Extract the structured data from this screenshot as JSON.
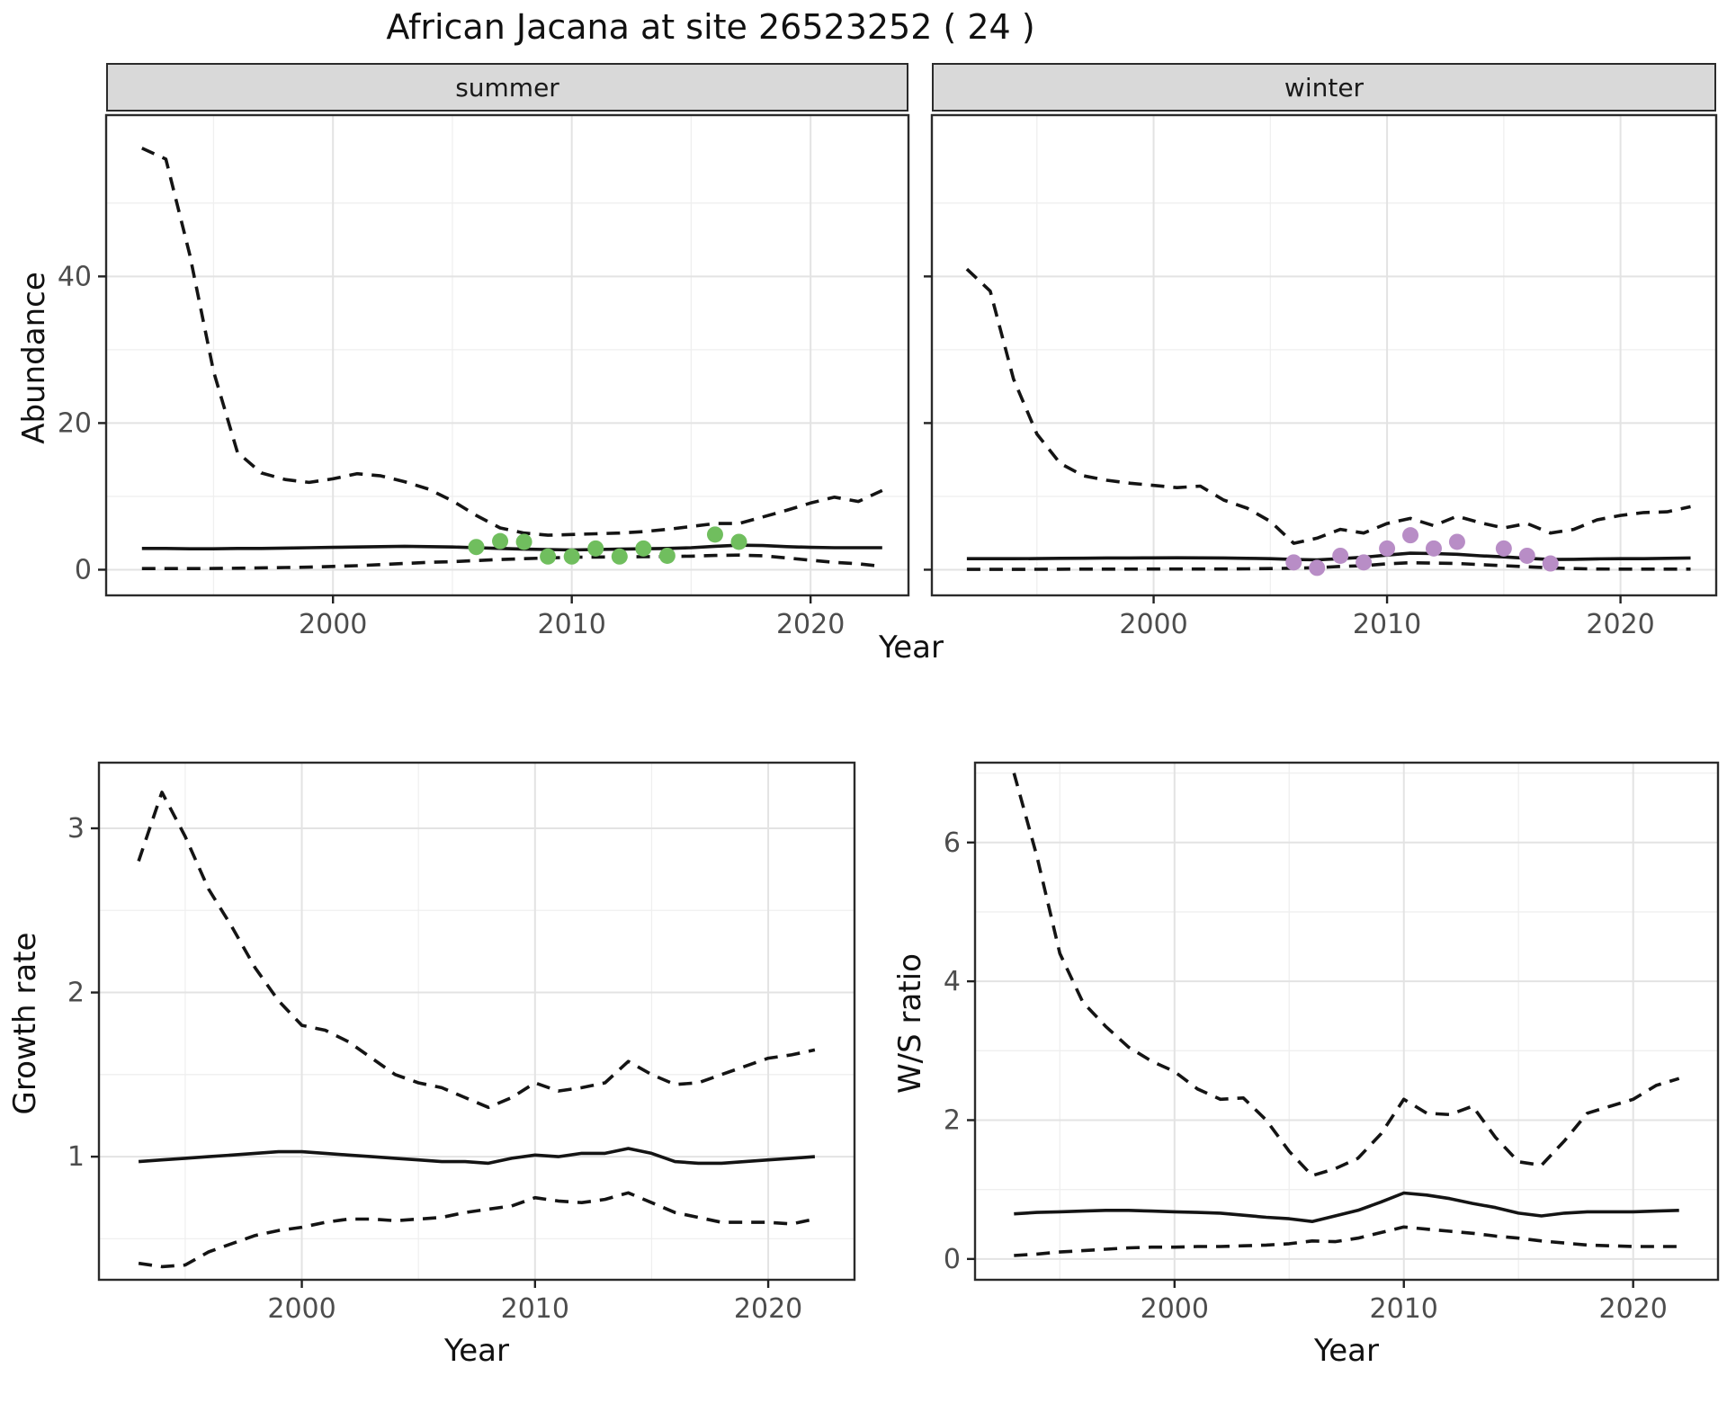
{
  "title": "African Jacana at site 26523252 ( 24 )",
  "colors": {
    "summer_point": "#70BE5E",
    "winter_point": "#B88DC6",
    "line": "#141414",
    "strip_bg": "#d9d9d9",
    "grid_major": "#e3e3e3",
    "grid_minor": "#efefef",
    "tick_text": "#4d4d4d",
    "panel_border": "#2b2b2b"
  },
  "axis_labels": {
    "abundance": "Abundance",
    "growth_rate": "Growth rate",
    "ws_ratio": "W/S ratio",
    "year": "Year"
  },
  "chart_data": [
    {
      "id": "abundance-summer",
      "type": "line",
      "facet": "summer",
      "xlabel": "Year",
      "ylabel": "Abundance",
      "xlim": [
        1990.5,
        2024.1
      ],
      "ylim": [
        -3.5,
        62
      ],
      "x_ticks": [
        2000,
        2010,
        2020
      ],
      "x_minor": [
        1995,
        2005,
        2015
      ],
      "y_ticks": [
        0,
        20,
        40
      ],
      "y_minor": [
        10,
        30,
        50
      ],
      "show_y_tick_labels": true,
      "series": [
        {
          "name": "upper_ci",
          "style": "dashed",
          "x": [
            1992,
            1993,
            1994,
            1995,
            1996,
            1997,
            1998,
            1999,
            2000,
            2001,
            2002,
            2003,
            2004,
            2005,
            2006,
            2007,
            2008,
            2009,
            2010,
            2011,
            2012,
            2013,
            2014,
            2015,
            2016,
            2017,
            2018,
            2019,
            2020,
            2021,
            2022,
            2023
          ],
          "y": [
            57.5,
            56,
            43,
            27,
            16,
            13.2,
            12.3,
            11.9,
            12.4,
            13.1,
            12.8,
            12,
            11,
            9.4,
            7.4,
            5.7,
            5.0,
            4.7,
            4.8,
            4.9,
            5.0,
            5.2,
            5.5,
            5.9,
            6.3,
            6.3,
            7.2,
            8.1,
            9.1,
            9.9,
            9.3,
            10.8
          ]
        },
        {
          "name": "fit",
          "style": "solid",
          "x": [
            1992,
            1993,
            1994,
            1995,
            1996,
            1997,
            1998,
            1999,
            2000,
            2001,
            2002,
            2003,
            2004,
            2005,
            2006,
            2007,
            2008,
            2009,
            2010,
            2011,
            2012,
            2013,
            2014,
            2015,
            2016,
            2017,
            2018,
            2019,
            2020,
            2021,
            2022,
            2023
          ],
          "y": [
            2.9,
            2.9,
            2.85,
            2.85,
            2.9,
            2.9,
            2.95,
            3.0,
            3.05,
            3.1,
            3.15,
            3.2,
            3.15,
            3.1,
            3.0,
            2.9,
            2.8,
            2.75,
            2.7,
            2.75,
            2.8,
            2.85,
            2.9,
            3.0,
            3.2,
            3.35,
            3.3,
            3.15,
            3.05,
            3.0,
            3.0,
            3.0
          ]
        },
        {
          "name": "lower_ci",
          "style": "dashed",
          "x": [
            1992,
            1993,
            1994,
            1995,
            1996,
            1997,
            1998,
            1999,
            2000,
            2001,
            2002,
            2003,
            2004,
            2005,
            2006,
            2007,
            2008,
            2009,
            2010,
            2011,
            2012,
            2013,
            2014,
            2015,
            2016,
            2017,
            2018,
            2019,
            2020,
            2021,
            2022,
            2023
          ],
          "y": [
            0.15,
            0.15,
            0.15,
            0.17,
            0.2,
            0.25,
            0.3,
            0.35,
            0.45,
            0.55,
            0.7,
            0.85,
            1.0,
            1.1,
            1.25,
            1.4,
            1.5,
            1.6,
            1.7,
            1.72,
            1.75,
            1.78,
            1.8,
            1.85,
            1.95,
            2.0,
            1.9,
            1.6,
            1.3,
            1.0,
            0.8,
            0.45
          ]
        }
      ],
      "points": {
        "name": "summer_counts",
        "color": "#70BE5E",
        "x": [
          2006,
          2007,
          2008,
          2009,
          2010,
          2011,
          2012,
          2013,
          2014,
          2016,
          2017
        ],
        "y": [
          3.1,
          3.9,
          3.8,
          1.8,
          1.8,
          2.9,
          1.8,
          2.9,
          1.9,
          4.8,
          3.8
        ]
      }
    },
    {
      "id": "abundance-winter",
      "type": "line",
      "facet": "winter",
      "xlabel": "Year",
      "ylabel": "Abundance",
      "xlim": [
        1990.5,
        2024.1
      ],
      "ylim": [
        -3.5,
        62
      ],
      "x_ticks": [
        2000,
        2010,
        2020
      ],
      "x_minor": [
        1995,
        2005,
        2015
      ],
      "y_ticks": [
        0,
        20,
        40
      ],
      "y_minor": [
        10,
        30,
        50
      ],
      "show_y_tick_labels": false,
      "series": [
        {
          "name": "upper_ci",
          "style": "dashed",
          "x": [
            1992,
            1993,
            1994,
            1995,
            1996,
            1997,
            1998,
            1999,
            2000,
            2001,
            2002,
            2003,
            2004,
            2005,
            2006,
            2007,
            2008,
            2009,
            2010,
            2011,
            2012,
            2013,
            2014,
            2015,
            2016,
            2017,
            2018,
            2019,
            2020,
            2021,
            2022,
            2023
          ],
          "y": [
            41,
            38,
            26,
            18.5,
            14.5,
            12.8,
            12.2,
            11.8,
            11.5,
            11.2,
            11.4,
            9.5,
            8.4,
            6.6,
            3.6,
            4.3,
            5.5,
            5.0,
            6.3,
            7.0,
            6.0,
            7.3,
            6.4,
            5.7,
            6.3,
            5.0,
            5.5,
            6.8,
            7.4,
            7.8,
            7.9,
            8.6
          ]
        },
        {
          "name": "fit",
          "style": "solid",
          "x": [
            1992,
            1993,
            1994,
            1995,
            1996,
            1997,
            1998,
            1999,
            2000,
            2001,
            2002,
            2003,
            2004,
            2005,
            2006,
            2007,
            2008,
            2009,
            2010,
            2011,
            2012,
            2013,
            2014,
            2015,
            2016,
            2017,
            2018,
            2019,
            2020,
            2021,
            2022,
            2023
          ],
          "y": [
            1.5,
            1.5,
            1.5,
            1.52,
            1.55,
            1.57,
            1.6,
            1.6,
            1.62,
            1.63,
            1.62,
            1.6,
            1.55,
            1.5,
            1.4,
            1.35,
            1.5,
            1.7,
            2.0,
            2.25,
            2.2,
            2.1,
            1.9,
            1.75,
            1.55,
            1.4,
            1.42,
            1.48,
            1.5,
            1.5,
            1.55,
            1.6
          ]
        },
        {
          "name": "lower_ci",
          "style": "dashed",
          "x": [
            1992,
            1993,
            1994,
            1995,
            1996,
            1997,
            1998,
            1999,
            2000,
            2001,
            2002,
            2003,
            2004,
            2005,
            2006,
            2007,
            2008,
            2009,
            2010,
            2011,
            2012,
            2013,
            2014,
            2015,
            2016,
            2017,
            2018,
            2019,
            2020,
            2021,
            2022,
            2023
          ],
          "y": [
            0.05,
            0.05,
            0.05,
            0.06,
            0.07,
            0.08,
            0.08,
            0.08,
            0.09,
            0.1,
            0.1,
            0.1,
            0.12,
            0.15,
            0.2,
            0.28,
            0.45,
            0.55,
            0.8,
            0.95,
            0.9,
            0.85,
            0.7,
            0.55,
            0.4,
            0.25,
            0.15,
            0.1,
            0.08,
            0.08,
            0.08,
            0.08
          ]
        }
      ],
      "points": {
        "name": "winter_counts",
        "color": "#B88DC6",
        "x": [
          2006,
          2007,
          2008,
          2009,
          2010,
          2011,
          2012,
          2013,
          2015,
          2016,
          2017
        ],
        "y": [
          1.0,
          0.25,
          1.9,
          1.0,
          2.9,
          4.7,
          2.9,
          3.8,
          2.9,
          1.9,
          0.85
        ]
      }
    },
    {
      "id": "growth-rate",
      "type": "line",
      "facet": null,
      "xlabel": "Year",
      "ylabel": "Growth rate",
      "xlim": [
        1991.3,
        2023.7
      ],
      "ylim": [
        0.25,
        3.4
      ],
      "x_ticks": [
        2000,
        2010,
        2020
      ],
      "x_minor": [
        1995,
        2005,
        2015
      ],
      "y_ticks": [
        1,
        2,
        3
      ],
      "y_minor": [
        0.5,
        1.5,
        2.5
      ],
      "show_y_tick_labels": true,
      "series": [
        {
          "name": "upper_ci",
          "style": "dashed",
          "x": [
            1993,
            1994,
            1995,
            1996,
            1997,
            1998,
            1999,
            2000,
            2001,
            2002,
            2003,
            2004,
            2005,
            2006,
            2007,
            2008,
            2009,
            2010,
            2011,
            2012,
            2013,
            2014,
            2015,
            2016,
            2017,
            2018,
            2019,
            2020,
            2021,
            2022
          ],
          "y": [
            2.8,
            3.22,
            2.95,
            2.63,
            2.4,
            2.15,
            1.95,
            1.8,
            1.77,
            1.7,
            1.6,
            1.5,
            1.45,
            1.42,
            1.36,
            1.3,
            1.36,
            1.45,
            1.4,
            1.42,
            1.45,
            1.58,
            1.5,
            1.44,
            1.45,
            1.5,
            1.55,
            1.6,
            1.62,
            1.65
          ]
        },
        {
          "name": "fit",
          "style": "solid",
          "x": [
            1993,
            1994,
            1995,
            1996,
            1997,
            1998,
            1999,
            2000,
            2001,
            2002,
            2003,
            2004,
            2005,
            2006,
            2007,
            2008,
            2009,
            2010,
            2011,
            2012,
            2013,
            2014,
            2015,
            2016,
            2017,
            2018,
            2019,
            2020,
            2021,
            2022
          ],
          "y": [
            0.97,
            0.98,
            0.99,
            1.0,
            1.01,
            1.02,
            1.03,
            1.03,
            1.02,
            1.01,
            1.0,
            0.99,
            0.98,
            0.97,
            0.97,
            0.96,
            0.99,
            1.01,
            1.0,
            1.02,
            1.02,
            1.05,
            1.02,
            0.97,
            0.96,
            0.96,
            0.97,
            0.98,
            0.99,
            1.0
          ]
        },
        {
          "name": "lower_ci",
          "style": "dashed",
          "x": [
            1993,
            1994,
            1995,
            1996,
            1997,
            1998,
            1999,
            2000,
            2001,
            2002,
            2003,
            2004,
            2005,
            2006,
            2007,
            2008,
            2009,
            2010,
            2011,
            2012,
            2013,
            2014,
            2015,
            2016,
            2017,
            2018,
            2019,
            2020,
            2021,
            2022
          ],
          "y": [
            0.35,
            0.33,
            0.34,
            0.42,
            0.47,
            0.52,
            0.55,
            0.57,
            0.6,
            0.62,
            0.62,
            0.61,
            0.62,
            0.63,
            0.66,
            0.68,
            0.7,
            0.75,
            0.73,
            0.72,
            0.74,
            0.78,
            0.72,
            0.66,
            0.63,
            0.6,
            0.6,
            0.6,
            0.59,
            0.62
          ]
        }
      ],
      "points": null
    },
    {
      "id": "ws-ratio",
      "type": "line",
      "facet": null,
      "xlabel": "Year",
      "ylabel": "W/S ratio",
      "xlim": [
        1991.3,
        2023.7
      ],
      "ylim": [
        -0.3,
        7.15
      ],
      "x_ticks": [
        2000,
        2010,
        2020
      ],
      "x_minor": [
        1995,
        2005,
        2015
      ],
      "y_ticks": [
        0,
        2,
        4,
        6
      ],
      "y_minor": [
        1,
        3,
        5,
        7
      ],
      "show_y_tick_labels": true,
      "series": [
        {
          "name": "upper_ci",
          "style": "dashed",
          "x": [
            1993,
            1994,
            1995,
            1996,
            1997,
            1998,
            1999,
            2000,
            2001,
            2002,
            2003,
            2004,
            2005,
            2006,
            2007,
            2008,
            2009,
            2010,
            2011,
            2012,
            2013,
            2014,
            2015,
            2016,
            2017,
            2018,
            2019,
            2020,
            2021,
            2022
          ],
          "y": [
            7.0,
            5.8,
            4.4,
            3.7,
            3.35,
            3.05,
            2.85,
            2.7,
            2.45,
            2.3,
            2.32,
            2.0,
            1.55,
            1.2,
            1.3,
            1.45,
            1.8,
            2.3,
            2.1,
            2.08,
            2.2,
            1.75,
            1.4,
            1.35,
            1.7,
            2.1,
            2.2,
            2.3,
            2.5,
            2.6
          ]
        },
        {
          "name": "fit",
          "style": "solid",
          "x": [
            1993,
            1994,
            1995,
            1996,
            1997,
            1998,
            1999,
            2000,
            2001,
            2002,
            2003,
            2004,
            2005,
            2006,
            2007,
            2008,
            2009,
            2010,
            2011,
            2012,
            2013,
            2014,
            2015,
            2016,
            2017,
            2018,
            2019,
            2020,
            2021,
            2022
          ],
          "y": [
            0.65,
            0.67,
            0.68,
            0.69,
            0.7,
            0.7,
            0.69,
            0.68,
            0.67,
            0.66,
            0.63,
            0.6,
            0.58,
            0.54,
            0.62,
            0.7,
            0.82,
            0.95,
            0.92,
            0.87,
            0.8,
            0.74,
            0.66,
            0.62,
            0.66,
            0.68,
            0.68,
            0.68,
            0.69,
            0.7
          ]
        },
        {
          "name": "lower_ci",
          "style": "dashed",
          "x": [
            1993,
            1994,
            1995,
            1996,
            1997,
            1998,
            1999,
            2000,
            2001,
            2002,
            2003,
            2004,
            2005,
            2006,
            2007,
            2008,
            2009,
            2010,
            2011,
            2012,
            2013,
            2014,
            2015,
            2016,
            2017,
            2018,
            2019,
            2020,
            2021,
            2022
          ],
          "y": [
            0.05,
            0.07,
            0.1,
            0.12,
            0.14,
            0.16,
            0.17,
            0.17,
            0.18,
            0.18,
            0.19,
            0.2,
            0.22,
            0.26,
            0.25,
            0.3,
            0.38,
            0.46,
            0.43,
            0.4,
            0.37,
            0.33,
            0.3,
            0.26,
            0.23,
            0.2,
            0.19,
            0.18,
            0.18,
            0.18
          ]
        }
      ],
      "points": null
    }
  ]
}
